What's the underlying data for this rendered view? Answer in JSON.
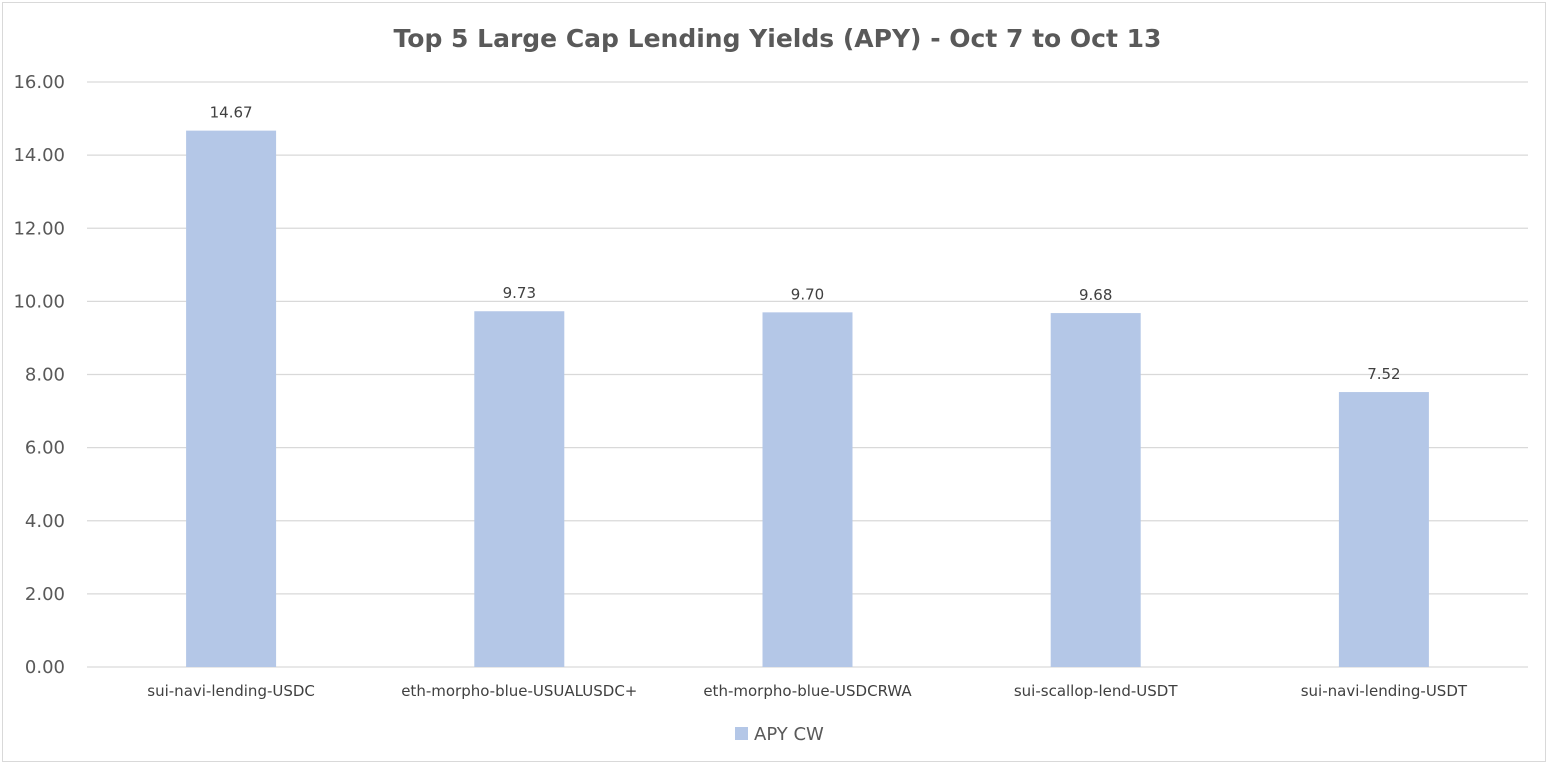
{
  "chart_data": {
    "type": "bar",
    "title": "Top 5 Large Cap Lending Yields (APY) - Oct 7 to Oct 13",
    "xlabel": "",
    "ylabel": "",
    "ylim": [
      0,
      16
    ],
    "yticks": [
      0,
      2,
      4,
      6,
      8,
      10,
      12,
      14,
      16
    ],
    "ytick_labels": [
      "0.00",
      "2.00",
      "4.00",
      "6.00",
      "8.00",
      "10.00",
      "12.00",
      "14.00",
      "16.00"
    ],
    "grid": true,
    "legend_position": "bottom",
    "categories": [
      "sui-navi-lending-USDC",
      "eth-morpho-blue-USUALUSDC+",
      "eth-morpho-blue-USDCRWA",
      "sui-scallop-lend-USDT",
      "sui-navi-lending-USDT"
    ],
    "series": [
      {
        "name": "APY CW",
        "color": "#b4c7e7",
        "values": [
          14.67,
          9.73,
          9.7,
          9.68,
          7.52
        ],
        "data_labels": [
          "14.67",
          "9.73",
          "9.70",
          "9.68",
          "7.52"
        ]
      }
    ]
  }
}
